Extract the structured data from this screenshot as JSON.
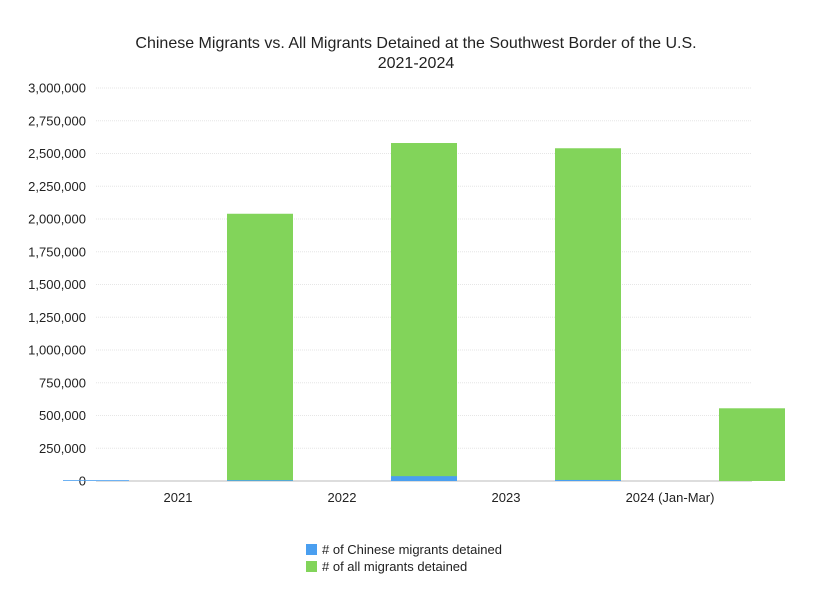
{
  "chart_data": {
    "type": "bar",
    "title_lines": [
      "Chinese Migrants vs. All Migrants Detained at the Southwest Border of the U.S.",
      "2021-2024"
    ],
    "categories": [
      "2021",
      "2022",
      "2023",
      "2024 (Jan-Mar)"
    ],
    "series": [
      {
        "name": "# of Chinese migrants detained",
        "color": "#4a9ff0",
        "values": [
          500,
          2100,
          37000,
          8000
        ]
      },
      {
        "name": "# of all migrants detained",
        "color": "#82d45a",
        "values": [
          2040000,
          2580000,
          2540000,
          555000
        ]
      }
    ],
    "ylim": [
      0,
      3000000
    ],
    "yticks": [
      0,
      250000,
      500000,
      750000,
      1000000,
      1250000,
      1500000,
      1750000,
      2000000,
      2250000,
      2500000,
      2750000,
      3000000
    ],
    "ytick_labels": [
      "0",
      "250,000",
      "500,000",
      "750,000",
      "1,000,000",
      "1,250,000",
      "1,500,000",
      "1,750,000",
      "2,000,000",
      "2,250,000",
      "2,500,000",
      "2,750,000",
      "3,000,000"
    ],
    "grid": true,
    "legend_position": "bottom-center"
  }
}
